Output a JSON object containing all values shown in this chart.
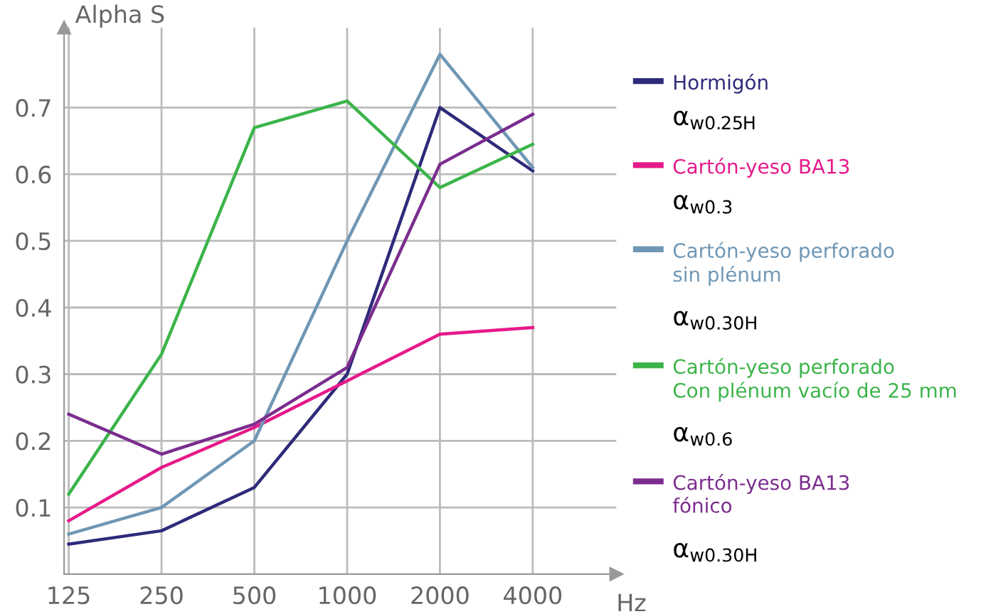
{
  "chart_data": {
    "type": "line",
    "ylabel": "Alpha S",
    "xlabel": "Hz",
    "categories": [
      "125",
      "250",
      "500",
      "1000",
      "2000",
      "4000"
    ],
    "ylim": [
      0,
      0.82
    ],
    "yticks": [
      0.1,
      0.2,
      0.3,
      0.4,
      0.5,
      0.6,
      0.7
    ],
    "grid": true,
    "legend": "right",
    "marker": "none",
    "line_style": "solid",
    "series": [
      {
        "name": "Hormigón",
        "color": "#2e2a7a",
        "values": [
          0.045,
          0.065,
          0.13,
          0.3,
          0.7,
          0.605
        ]
      },
      {
        "name": "Cartón-yeso BA13",
        "color": "#e6198a",
        "values": [
          0.08,
          0.16,
          0.22,
          0.29,
          0.36,
          0.37
        ]
      },
      {
        "name": "Cartón-yeso perforado\nsin plénum",
        "color": "#6f97b5",
        "values": [
          0.06,
          0.1,
          0.2,
          0.5,
          0.78,
          0.61
        ]
      },
      {
        "name": "Cartón-yeso perforado\nCon plénum vacío de 25 mm",
        "color": "#3cb44a",
        "values": [
          0.12,
          0.33,
          0.67,
          0.71,
          0.58,
          0.645
        ]
      },
      {
        "name": "Cartón-yeso BA13\nfónico",
        "color": "#7b2d8e",
        "values": [
          0.24,
          0.18,
          0.225,
          0.31,
          0.615,
          0.69
        ]
      }
    ],
    "annotations": [
      "α$_{w0.25H}$",
      "α$_{w0.3}$",
      "α$_{w0.30H}$",
      "α$_{w0.6}$",
      "α$_{w0.30H}$"
    ]
  }
}
